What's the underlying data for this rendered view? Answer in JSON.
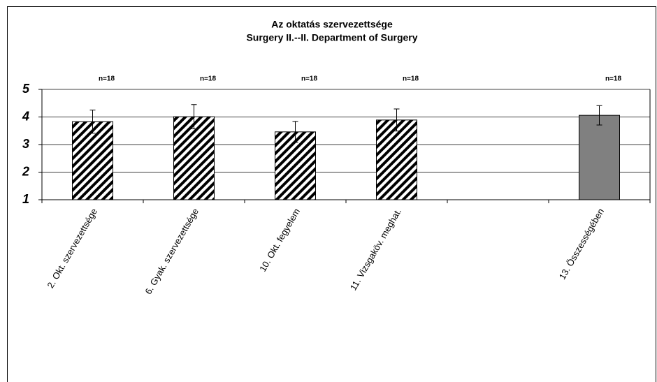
{
  "chart_data": {
    "type": "bar",
    "title": "Az oktatás szervezettsége",
    "subtitle": "Surgery II.--II. Department of Surgery",
    "categories": [
      "2. Okt. szervezettsége",
      "6. Gyak. szervezettsége",
      "10. Okt. fegyelem",
      "11. Vizsgaköv. meghat.",
      null,
      "13. Összességében"
    ],
    "series": [
      {
        "values": [
          3.83,
          4.01,
          3.46,
          3.89,
          null,
          4.06
        ],
        "errors": [
          0.42,
          0.44,
          0.38,
          0.4,
          null,
          0.35
        ],
        "colors": [
          "#000000",
          "#000000",
          "#000000",
          "#000000",
          null,
          "#808080"
        ],
        "hatched": [
          true,
          true,
          true,
          true,
          null,
          false
        ],
        "annotations": [
          "n=18",
          "n=18",
          "n=18",
          "n=18",
          null,
          "n=18"
        ]
      }
    ],
    "ylim": [
      1,
      5
    ],
    "yticks": [
      1,
      2,
      3,
      4,
      5
    ],
    "grid": true
  }
}
